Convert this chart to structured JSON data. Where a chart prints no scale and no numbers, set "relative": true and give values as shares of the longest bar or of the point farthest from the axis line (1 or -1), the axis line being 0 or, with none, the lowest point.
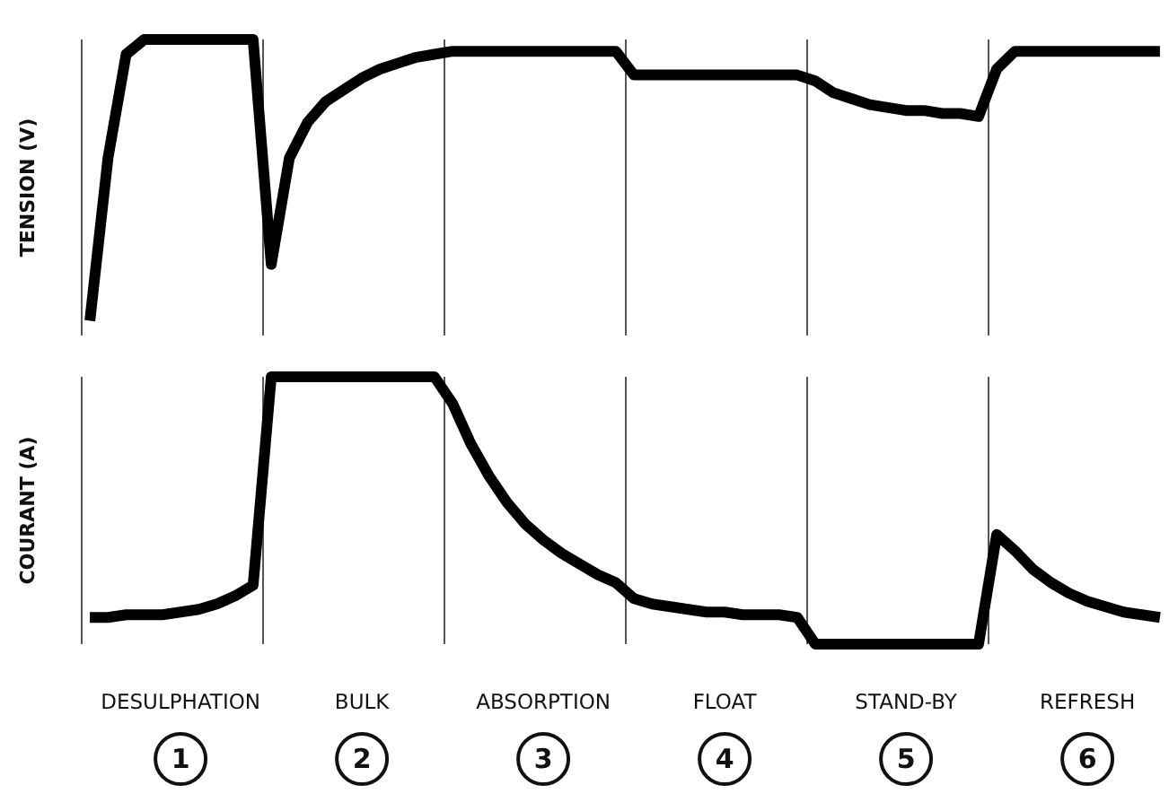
{
  "chart_data": [
    {
      "type": "line",
      "ylabel": "TENSION (V)",
      "relative": true,
      "tick_labels": false,
      "marker": "none",
      "line_style": "solid",
      "grid": "x",
      "categories": [
        null,
        null,
        null,
        null,
        null,
        null,
        null,
        null,
        null,
        null,
        null,
        null,
        null,
        null,
        null,
        null,
        null,
        null,
        null,
        null,
        null,
        null,
        null,
        null,
        null,
        null,
        null,
        null,
        null,
        null,
        null,
        null,
        null,
        null,
        null,
        null,
        null,
        null,
        null,
        null,
        null,
        null,
        null,
        null,
        null,
        null,
        null,
        null,
        null,
        null,
        null,
        null,
        null,
        null,
        null,
        null,
        null,
        null,
        null,
        null
      ],
      "series": [
        {
          "color": "#000000",
          "values": [
            0.05,
            0.6,
            0.95,
            1,
            1,
            1,
            1,
            1,
            1,
            1,
            0.24,
            0.6,
            0.72,
            0.79,
            0.83,
            0.87,
            0.9,
            0.92,
            0.94,
            0.95,
            0.96,
            0.96,
            0.96,
            0.96,
            0.96,
            0.96,
            0.96,
            0.96,
            0.96,
            0.96,
            0.88,
            0.88,
            0.88,
            0.88,
            0.88,
            0.88,
            0.88,
            0.88,
            0.88,
            0.88,
            0.86,
            0.82,
            0.8,
            0.78,
            0.77,
            0.76,
            0.76,
            0.75,
            0.75,
            0.74,
            0.9,
            0.96,
            0.96,
            0.96,
            0.96,
            0.96,
            0.96,
            0.96,
            0.96,
            0.96
          ]
        }
      ]
    },
    {
      "type": "line",
      "ylabel": "COURANT (A)",
      "relative": true,
      "tick_labels": "x",
      "marker": "none",
      "line_style": "solid",
      "grid": "x",
      "categories": [
        null,
        null,
        null,
        null,
        null,
        "DESULPHATION",
        null,
        null,
        null,
        null,
        null,
        null,
        null,
        null,
        null,
        "BULK",
        null,
        null,
        null,
        null,
        null,
        null,
        null,
        null,
        null,
        "ABSORPTION",
        null,
        null,
        null,
        null,
        null,
        null,
        null,
        null,
        null,
        "FLOAT",
        null,
        null,
        null,
        null,
        null,
        null,
        null,
        null,
        null,
        "STAND-BY",
        null,
        null,
        null,
        null,
        null,
        null,
        null,
        null,
        null,
        "REFRESH",
        null,
        null,
        null,
        null
      ],
      "series": [
        {
          "color": "#000000",
          "values": [
            0.1,
            0.1,
            0.11,
            0.11,
            0.11,
            0.12,
            0.13,
            0.15,
            0.18,
            0.22,
            1,
            1,
            1,
            1,
            1,
            1,
            1,
            1,
            1,
            1,
            0.9,
            0.75,
            0.63,
            0.53,
            0.45,
            0.39,
            0.34,
            0.3,
            0.26,
            0.23,
            0.17,
            0.15,
            0.14,
            0.13,
            0.12,
            0.12,
            0.11,
            0.11,
            0.11,
            0.1,
            0,
            0,
            0,
            0,
            0,
            0,
            0,
            0,
            0,
            0,
            0.41,
            0.35,
            0.28,
            0.23,
            0.19,
            0.16,
            0.14,
            0.12,
            0.11,
            0.1
          ]
        }
      ],
      "annotations": [
        "1",
        "2",
        "3",
        "4",
        "5",
        "6"
      ]
    }
  ]
}
